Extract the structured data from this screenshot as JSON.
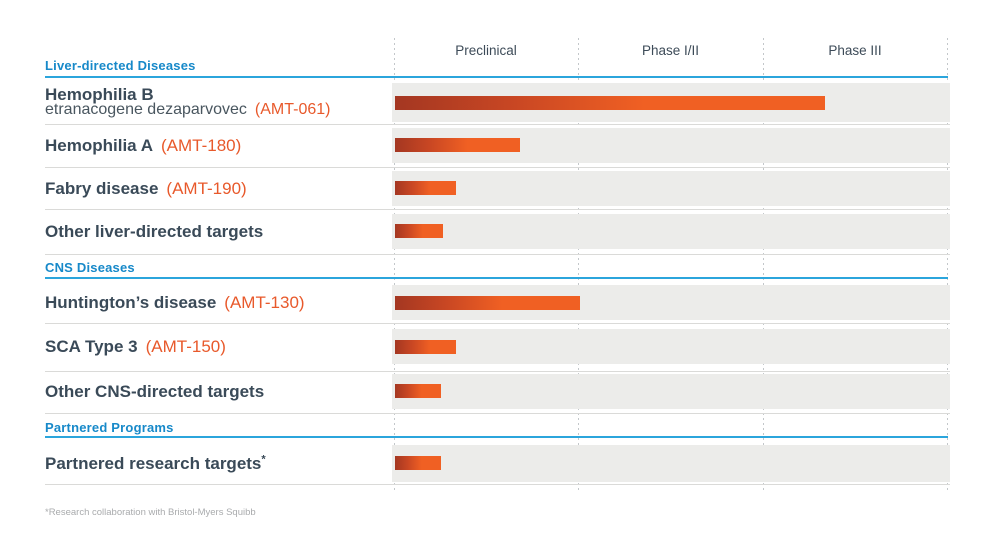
{
  "columns": [
    "Preclinical",
    "Phase I/II",
    "Phase III"
  ],
  "sections": [
    {
      "label": "Liver-directed Diseases",
      "rows": [
        {
          "name": "Hemophilia B",
          "sub": "etranacogene dezaparvovec",
          "code": "(AMT-061)"
        },
        {
          "name": "Hemophilia A",
          "code": "(AMT-180)"
        },
        {
          "name": "Fabry disease",
          "code": "(AMT-190)"
        },
        {
          "name": "Other liver-directed targets",
          "code": ""
        }
      ]
    },
    {
      "label": "CNS Diseases",
      "rows": [
        {
          "name": "Huntington’s disease",
          "code": "(AMT-130)"
        },
        {
          "name": "SCA Type 3",
          "code": "(AMT-150)"
        },
        {
          "name": "Other CNS-directed targets",
          "code": ""
        }
      ]
    },
    {
      "label": "Partnered Programs",
      "rows": [
        {
          "name": "Partnered research targets",
          "name_suffix": "*",
          "code": ""
        }
      ]
    }
  ],
  "footnote": "*Research collaboration with Bristol-Myers Squibb",
  "colors": {
    "blue_text": "#1789c9",
    "blue_line": "#2ba5dc",
    "label_dark": "#3a4a58",
    "label_sub": "#49565f",
    "amt": "#e8592b",
    "bar_dark": "#a43722",
    "bar_mid": "#c94723",
    "bar_orange": "#f06023",
    "strip": "#ececea",
    "divider": "#dadad8",
    "dotted": "#c3c7ca",
    "footnote_gray": "#a9abad",
    "header_text": "#3d4b58"
  },
  "chart_data": {
    "type": "bar",
    "orientation": "horizontal",
    "stage_axis": [
      "Preclinical",
      "Phase I/II",
      "Phase III"
    ],
    "x_range_stages": [
      0,
      3
    ],
    "grid": "dotted vertical stage boundaries",
    "legend": "none",
    "groups": [
      {
        "name": "Liver-directed Diseases",
        "items": [
          {
            "label": "Hemophilia B — etranacogene dezaparvovec (AMT-061)",
            "stage_progress": 2.33
          },
          {
            "label": "Hemophilia A (AMT-180)",
            "stage_progress": 0.68
          },
          {
            "label": "Fabry disease (AMT-190)",
            "stage_progress": 0.33
          },
          {
            "label": "Other liver-directed targets",
            "stage_progress": 0.26
          }
        ]
      },
      {
        "name": "CNS Diseases",
        "items": [
          {
            "label": "Huntington’s disease (AMT-130)",
            "stage_progress": 1.0
          },
          {
            "label": "SCA Type 3 (AMT-150)",
            "stage_progress": 0.33
          },
          {
            "label": "Other CNS-directed targets",
            "stage_progress": 0.25
          }
        ]
      },
      {
        "name": "Partnered Programs",
        "items": [
          {
            "label": "Partnered research targets*",
            "stage_progress": 0.25
          }
        ]
      }
    ],
    "footnote": "*Research collaboration with Bristol-Myers Squibb"
  }
}
